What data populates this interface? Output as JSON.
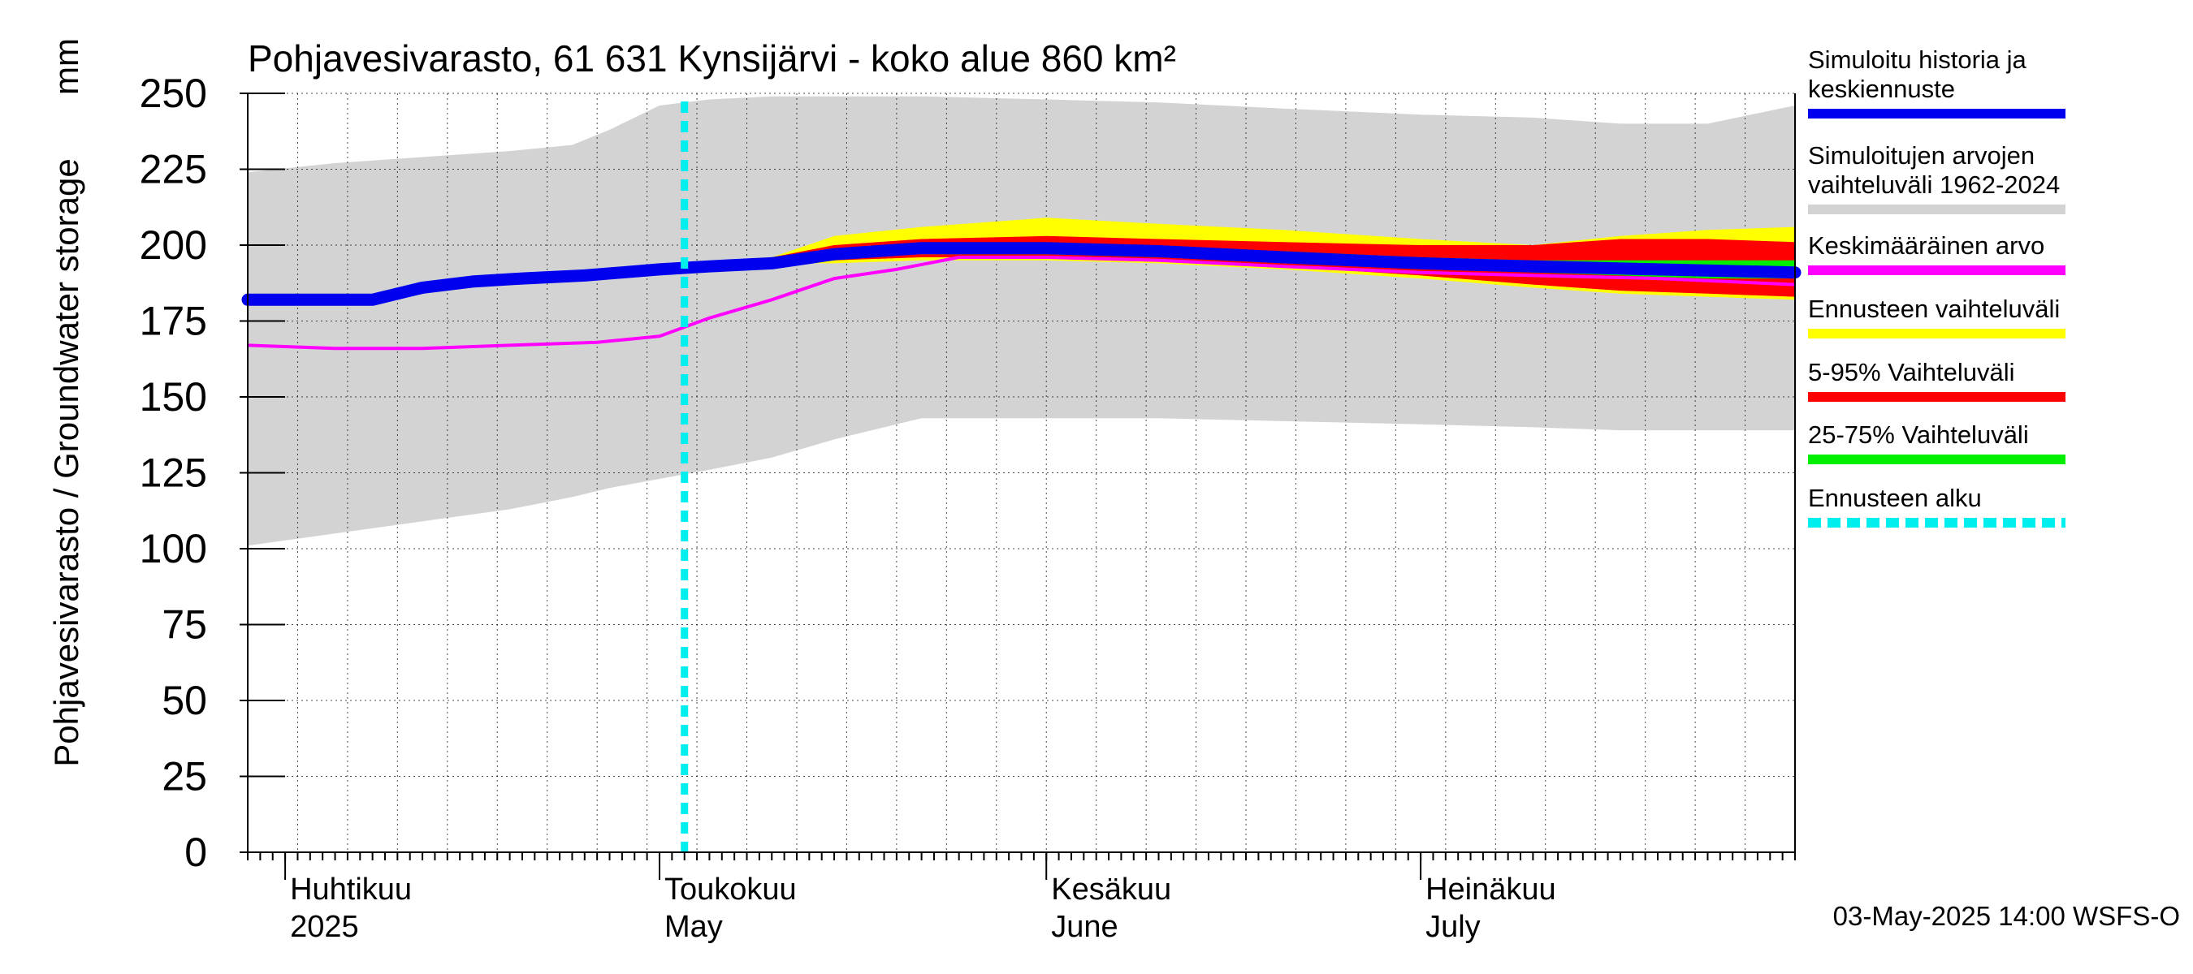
{
  "chart_data": {
    "type": "area",
    "title": "Pohjavesivarasto, 61 631 Kynsijärvi - koko alue 860 km²",
    "ylabel": "Pohjavesivarasto / Groundwater storage",
    "yunit": "mm",
    "ylim": [
      0,
      250
    ],
    "yticks": [
      0,
      25,
      50,
      75,
      100,
      125,
      150,
      175,
      200,
      225,
      250
    ],
    "xlim": [
      "2025-03-29",
      "2025-07-31"
    ],
    "grid": true,
    "legend_position": "right",
    "month_labels": [
      {
        "date": "2025-04-01",
        "line1": "Huhtikuu",
        "line2": "2025"
      },
      {
        "date": "2025-05-01",
        "line1": "Toukokuu",
        "line2": "May"
      },
      {
        "date": "2025-06-01",
        "line1": "Kesäkuu",
        "line2": "June"
      },
      {
        "date": "2025-07-01",
        "line1": "Heinäkuu",
        "line2": "July"
      }
    ],
    "footer": "03-May-2025 14:00 WSFS-O",
    "forecast_start": "2025-05-03",
    "legend": [
      {
        "key": "history",
        "text": [
          "Simuloitu historia ja",
          "keskiennuste"
        ],
        "color": "#0000ee",
        "style": "solid"
      },
      {
        "key": "range",
        "text": [
          "Simuloitujen arvojen",
          "vaihteluväli 1962-2024"
        ],
        "color": "#d3d3d3",
        "style": "solid"
      },
      {
        "key": "mean",
        "text": [
          "Keskimääräinen arvo"
        ],
        "color": "#ff00ff",
        "style": "solid"
      },
      {
        "key": "fc_range",
        "text": [
          "Ennusteen vaihteluväli"
        ],
        "color": "#ffff00",
        "style": "solid"
      },
      {
        "key": "p5_95",
        "text": [
          "5-95% Vaihteluväli"
        ],
        "color": "#ff0000",
        "style": "solid"
      },
      {
        "key": "p25_75",
        "text": [
          "25-75% Vaihteluväli"
        ],
        "color": "#00ee00",
        "style": "solid"
      },
      {
        "key": "fc_start",
        "text": [
          "Ennusteen alku"
        ],
        "color": "#00eeee",
        "style": "dashed"
      }
    ],
    "series": [
      {
        "key": "range",
        "x": [
          "2025-03-29",
          "2025-04-05",
          "2025-04-12",
          "2025-04-19",
          "2025-04-24",
          "2025-04-27",
          "2025-05-01",
          "2025-05-05",
          "2025-05-10",
          "2025-05-15",
          "2025-05-22",
          "2025-06-01",
          "2025-06-10",
          "2025-06-20",
          "2025-07-01",
          "2025-07-10",
          "2025-07-17",
          "2025-07-24",
          "2025-07-31"
        ],
        "upper": [
          224,
          227,
          229,
          231,
          233,
          238,
          246,
          248,
          249,
          249,
          249,
          248,
          247,
          245,
          243,
          242,
          240,
          240,
          246
        ],
        "lower": [
          101,
          105,
          109,
          113,
          117,
          120,
          123,
          126,
          130,
          136,
          143,
          143,
          143,
          142,
          141,
          140,
          139,
          139,
          139
        ]
      },
      {
        "key": "fc_range",
        "x": [
          "2025-05-03",
          "2025-05-10",
          "2025-05-15",
          "2025-05-22",
          "2025-06-01",
          "2025-06-10",
          "2025-06-20",
          "2025-07-01",
          "2025-07-10",
          "2025-07-17",
          "2025-07-24",
          "2025-07-31"
        ],
        "upper": [
          193,
          196,
          203,
          206,
          209,
          207,
          205,
          202,
          200,
          203,
          205,
          206
        ],
        "lower": [
          193,
          194,
          194,
          195,
          195,
          194,
          192,
          189,
          186,
          184,
          183,
          182
        ]
      },
      {
        "key": "p5_95",
        "x": [
          "2025-05-03",
          "2025-05-10",
          "2025-05-15",
          "2025-05-22",
          "2025-06-01",
          "2025-06-10",
          "2025-06-20",
          "2025-07-01",
          "2025-07-10",
          "2025-07-17",
          "2025-07-24",
          "2025-07-31"
        ],
        "upper": [
          193,
          196,
          200,
          202,
          203,
          202,
          201,
          200,
          200,
          202,
          202,
          201
        ],
        "lower": [
          193,
          194,
          195,
          196,
          196,
          195,
          193,
          190,
          187,
          185,
          184,
          183
        ]
      },
      {
        "key": "p25_75",
        "x": [
          "2025-05-03",
          "2025-05-10",
          "2025-05-15",
          "2025-05-22",
          "2025-06-01",
          "2025-06-10",
          "2025-06-20",
          "2025-07-01",
          "2025-07-10",
          "2025-07-17",
          "2025-07-24",
          "2025-07-31"
        ],
        "upper": [
          193,
          195,
          198,
          199,
          200,
          199,
          198,
          196,
          195,
          195,
          195,
          195
        ],
        "lower": [
          193,
          195,
          197,
          197,
          197,
          196,
          195,
          193,
          191,
          190,
          189,
          189
        ]
      },
      {
        "key": "mean",
        "x": [
          "2025-03-29",
          "2025-04-05",
          "2025-04-12",
          "2025-04-19",
          "2025-04-26",
          "2025-05-01",
          "2025-05-05",
          "2025-05-10",
          "2025-05-15",
          "2025-05-20",
          "2025-05-25",
          "2025-06-01",
          "2025-06-10",
          "2025-06-20",
          "2025-07-01",
          "2025-07-10",
          "2025-07-20",
          "2025-07-31"
        ],
        "y": [
          167,
          166,
          166,
          167,
          168,
          170,
          176,
          182,
          189,
          192,
          196,
          196,
          195,
          193,
          191,
          190,
          189,
          187
        ]
      },
      {
        "key": "history",
        "x": [
          "2025-03-29",
          "2025-04-05",
          "2025-04-08",
          "2025-04-12",
          "2025-04-16",
          "2025-04-20",
          "2025-04-25",
          "2025-05-01",
          "2025-05-05",
          "2025-05-10",
          "2025-05-15",
          "2025-05-22",
          "2025-06-01",
          "2025-06-10",
          "2025-06-20",
          "2025-07-01",
          "2025-07-10",
          "2025-07-20",
          "2025-07-31"
        ],
        "y": [
          182,
          182,
          182,
          186,
          188,
          189,
          190,
          192,
          193,
          194,
          197,
          199,
          199,
          198,
          196,
          194,
          193,
          192,
          191
        ]
      }
    ]
  }
}
